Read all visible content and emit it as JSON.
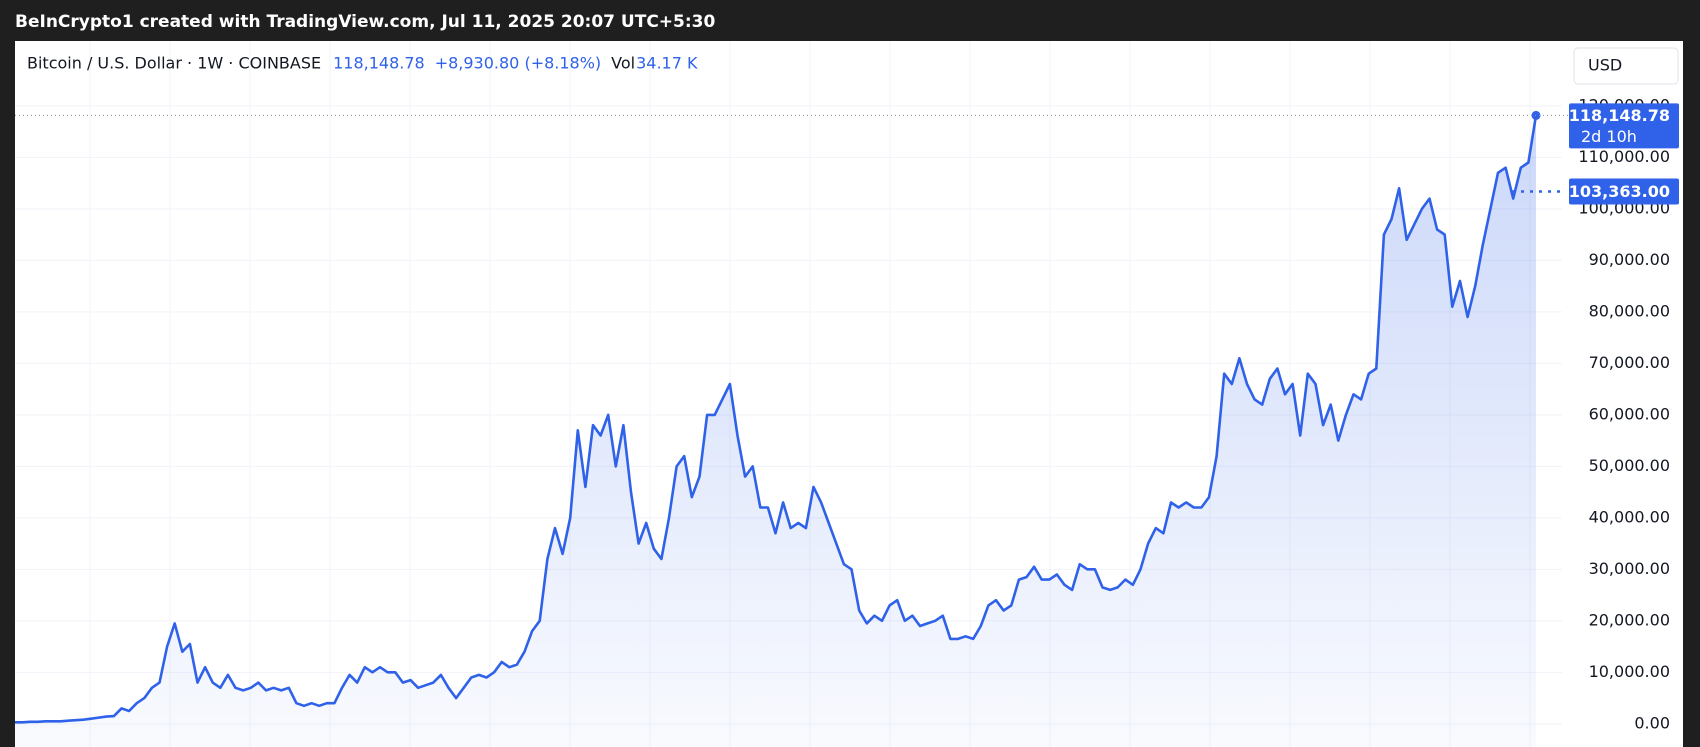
{
  "chart_data": {
    "type": "line",
    "title": "BeInCrypto1 created with TradingView.com, Jul 11, 2025 20:07 UTC+5:30",
    "symbol": "Bitcoin / U.S. Dollar · 1W · COINBASE",
    "header_price": "118,148.78",
    "header_change": "+8,930.80 (+8.18%)",
    "volume_label": "Vol",
    "volume": "34.17 K",
    "currency": "USD",
    "ylim": [
      -4500,
      132600
    ],
    "yticks": [
      {
        "value": 0,
        "label": "0.00"
      },
      {
        "value": 10000,
        "label": "10,000.00"
      },
      {
        "value": 20000,
        "label": "20,000.00"
      },
      {
        "value": 30000,
        "label": "30,000.00"
      },
      {
        "value": 40000,
        "label": "40,000.00"
      },
      {
        "value": 50000,
        "label": "50,000.00"
      },
      {
        "value": 60000,
        "label": "60,000.00"
      },
      {
        "value": 70000,
        "label": "70,000.00"
      },
      {
        "value": 80000,
        "label": "80,000.00"
      },
      {
        "value": 90000,
        "label": "90,000.00"
      },
      {
        "value": 100000,
        "label": "100,000.00"
      },
      {
        "value": 110000,
        "label": "110,000.00"
      },
      {
        "value": 120000,
        "label": "120,000.00"
      }
    ],
    "grid": true,
    "series": [
      {
        "name": "BTCUSD",
        "color": "#2f62e9",
        "values": [
          300,
          300,
          400,
          400,
          500,
          500,
          500,
          600,
          700,
          800,
          1000,
          1200,
          1400,
          1500,
          3000,
          2500,
          4000,
          5000,
          7000,
          8000,
          15000,
          19500,
          14000,
          15500,
          8000,
          11000,
          8000,
          7000,
          9500,
          7000,
          6500,
          7000,
          8000,
          6500,
          7000,
          6500,
          7000,
          4000,
          3500,
          4000,
          3500,
          4000,
          4000,
          7000,
          9500,
          8000,
          11000,
          10000,
          11000,
          10000,
          10000,
          8000,
          8500,
          7000,
          7500,
          8000,
          9500,
          7000,
          5000,
          7000,
          9000,
          9500,
          9000,
          10000,
          12000,
          11000,
          11500,
          14000,
          18000,
          20000,
          32000,
          38000,
          33000,
          40000,
          57000,
          46000,
          58000,
          56000,
          60000,
          50000,
          58000,
          45000,
          35000,
          39000,
          34000,
          32000,
          40000,
          50000,
          52000,
          44000,
          48000,
          60000,
          60000,
          63000,
          66000,
          56000,
          48000,
          50000,
          42000,
          42000,
          37000,
          43000,
          38000,
          39000,
          38000,
          46000,
          43000,
          39000,
          35000,
          31000,
          30000,
          22000,
          19500,
          21000,
          20000,
          23000,
          24000,
          20000,
          21000,
          19000,
          19500,
          20000,
          21000,
          16500,
          16500,
          17000,
          16500,
          19000,
          23000,
          24000,
          22000,
          23000,
          28000,
          28500,
          30500,
          28000,
          28000,
          29000,
          27000,
          26000,
          31000,
          30000,
          30000,
          26500,
          26000,
          26500,
          28000,
          27000,
          30000,
          35000,
          38000,
          37000,
          43000,
          42000,
          43000,
          42000,
          42000,
          44000,
          52000,
          68000,
          66000,
          71000,
          66000,
          63000,
          62000,
          67000,
          69000,
          64000,
          66000,
          56000,
          68000,
          66000,
          58000,
          62000,
          55000,
          60000,
          64000,
          63000,
          68000,
          69000,
          95000,
          98000,
          104000,
          94000,
          97000,
          100000,
          102000,
          96000,
          95000,
          81000,
          86000,
          79000,
          85000,
          93000,
          100000,
          107000,
          108000,
          102000,
          108000,
          109000,
          118148.78
        ]
      }
    ],
    "last_price": {
      "value": 118148.78,
      "label": "118,148.78"
    },
    "countdown": "2d 10h",
    "price_line": {
      "value": 103363,
      "label": "103,363.00"
    }
  }
}
